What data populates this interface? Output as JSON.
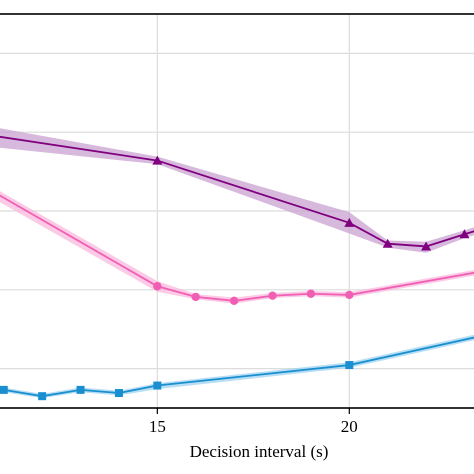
{
  "chart_data": {
    "type": "line",
    "title": "",
    "xlabel": "Decision interval (s)",
    "ylabel": "",
    "xlim": [
      10.85,
      23.3
    ],
    "ylim": [
      0,
      1
    ],
    "x_ticks": [
      15,
      20
    ],
    "grid": true,
    "legend": "none",
    "y_axis_note": "y tick labels cropped out of view; values in normalized 0–1 units of the visible plot height",
    "series": [
      {
        "color": "#800080",
        "band_color": "#c8a2d0",
        "marker": "triangle",
        "marked_x": [
          15,
          20,
          21,
          22,
          23
        ],
        "points": [
          {
            "x": 10.85,
            "y": 0.689,
            "lo": 0.661,
            "hi": 0.711
          },
          {
            "x": 15,
            "y": 0.628,
            "lo": 0.619,
            "hi": 0.638
          },
          {
            "x": 20,
            "y": 0.47,
            "lo": 0.443,
            "hi": 0.497
          },
          {
            "x": 21,
            "y": 0.417,
            "lo": 0.407,
            "hi": 0.425
          },
          {
            "x": 22,
            "y": 0.41,
            "lo": 0.394,
            "hi": 0.422
          },
          {
            "x": 23,
            "y": 0.441,
            "lo": 0.431,
            "hi": 0.451
          },
          {
            "x": 23.3,
            "y": 0.45,
            "lo": 0.44,
            "hi": 0.46
          }
        ]
      },
      {
        "color": "#f15fb5",
        "band_color": "#f9b8dc",
        "marker": "circle",
        "marked_x": [
          15,
          16,
          17,
          18,
          19,
          20
        ],
        "points": [
          {
            "x": 10.85,
            "y": 0.542,
            "lo": 0.525,
            "hi": 0.553
          },
          {
            "x": 15,
            "y": 0.309,
            "lo": 0.295,
            "hi": 0.322
          },
          {
            "x": 16,
            "y": 0.282,
            "lo": 0.276,
            "hi": 0.289
          },
          {
            "x": 17,
            "y": 0.272,
            "lo": 0.265,
            "hi": 0.28
          },
          {
            "x": 18,
            "y": 0.285,
            "lo": 0.279,
            "hi": 0.292
          },
          {
            "x": 19,
            "y": 0.29,
            "lo": 0.284,
            "hi": 0.297
          },
          {
            "x": 20,
            "y": 0.287,
            "lo": 0.28,
            "hi": 0.294
          },
          {
            "x": 23.3,
            "y": 0.344,
            "lo": 0.337,
            "hi": 0.351
          }
        ]
      },
      {
        "color": "#1a8fcf",
        "band_color": "#9fd3f0",
        "marker": "square",
        "marked_x": [
          11,
          12,
          13,
          14,
          15,
          20
        ],
        "points": [
          {
            "x": 10.85,
            "y": 0.046,
            "lo": 0.04,
            "hi": 0.052
          },
          {
            "x": 11,
            "y": 0.046,
            "lo": 0.04,
            "hi": 0.052
          },
          {
            "x": 12,
            "y": 0.03,
            "lo": 0.025,
            "hi": 0.036
          },
          {
            "x": 13,
            "y": 0.046,
            "lo": 0.04,
            "hi": 0.052
          },
          {
            "x": 14,
            "y": 0.038,
            "lo": 0.032,
            "hi": 0.044
          },
          {
            "x": 15,
            "y": 0.057,
            "lo": 0.048,
            "hi": 0.063
          },
          {
            "x": 20,
            "y": 0.109,
            "lo": 0.102,
            "hi": 0.116
          },
          {
            "x": 23.3,
            "y": 0.18,
            "lo": 0.173,
            "hi": 0.187
          }
        ]
      }
    ]
  }
}
